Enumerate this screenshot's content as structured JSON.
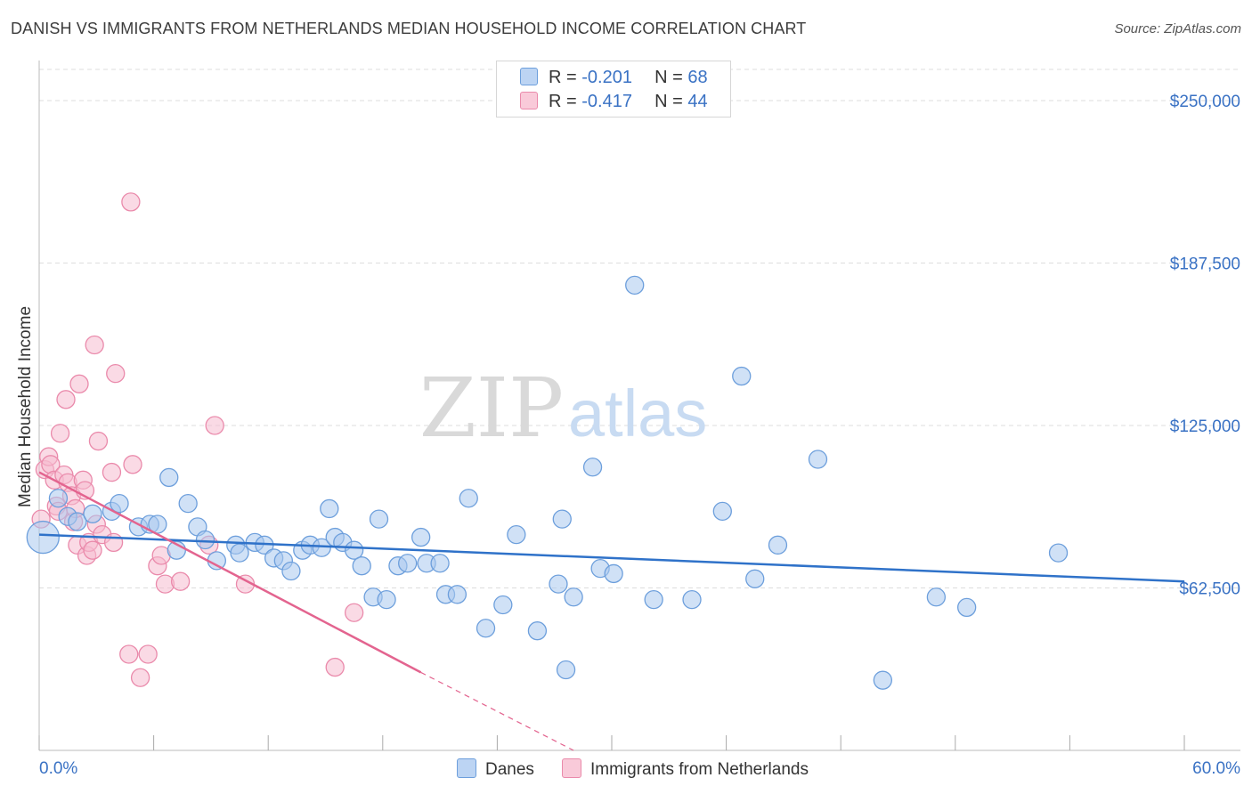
{
  "header": {
    "title": "DANISH VS IMMIGRANTS FROM NETHERLANDS MEDIAN HOUSEHOLD INCOME CORRELATION CHART",
    "source": "Source: ZipAtlas.com"
  },
  "watermark": {
    "zip": "ZIP",
    "atlas": "atlas"
  },
  "legend": {
    "rows": [
      {
        "r_label": "R =",
        "r_value": "-0.201",
        "n_label": "N =",
        "n_value": "68"
      },
      {
        "r_label": "R =",
        "r_value": "-0.417",
        "n_label": "N =",
        "n_value": "44"
      }
    ]
  },
  "colors": {
    "danes_fill": "#a9c8ef",
    "danes_stroke": "#6d9fdc",
    "danes_line": "#2f72c9",
    "neth_fill": "#f6bcd0",
    "neth_stroke": "#ea8aab",
    "neth_line": "#e3648f",
    "axis_text": "#3a72c4",
    "grid": "#dddddd"
  },
  "chart_data": {
    "type": "scatter",
    "title": "DANISH VS IMMIGRANTS FROM NETHERLANDS MEDIAN HOUSEHOLD INCOME CORRELATION CHART",
    "xlabel": "",
    "ylabel": "Median Household Income",
    "xlim": [
      0,
      60
    ],
    "ylim": [
      0,
      262000
    ],
    "x_tick_labels": [
      "0.0%",
      "60.0%"
    ],
    "y_ticks": [
      62500,
      125000,
      187500,
      250000
    ],
    "y_tick_labels": [
      "$62,500",
      "$125,000",
      "$187,500",
      "$250,000"
    ],
    "grid": true,
    "legend_position": "top-center",
    "series": [
      {
        "name": "Danes",
        "r": -0.201,
        "n": 68,
        "trend": {
          "x": [
            0,
            60
          ],
          "y": [
            83000,
            65000
          ]
        },
        "points": [
          [
            0.2,
            82000,
            18
          ],
          [
            1.0,
            97000,
            10
          ],
          [
            1.5,
            90000,
            10
          ],
          [
            2.0,
            88000,
            10
          ],
          [
            2.8,
            91000,
            10
          ],
          [
            3.8,
            92000,
            10
          ],
          [
            4.2,
            95000,
            10
          ],
          [
            5.2,
            86000,
            10
          ],
          [
            5.8,
            87000,
            10
          ],
          [
            6.2,
            87000,
            10
          ],
          [
            6.8,
            105000,
            10
          ],
          [
            7.2,
            77000,
            10
          ],
          [
            7.8,
            95000,
            10
          ],
          [
            8.3,
            86000,
            10
          ],
          [
            8.7,
            81000,
            10
          ],
          [
            9.3,
            73000,
            10
          ],
          [
            10.3,
            79000,
            10
          ],
          [
            10.5,
            76000,
            10
          ],
          [
            11.3,
            80000,
            10
          ],
          [
            11.8,
            79000,
            10
          ],
          [
            12.3,
            74000,
            10
          ],
          [
            12.8,
            73000,
            10
          ],
          [
            13.2,
            69000,
            10
          ],
          [
            13.8,
            77000,
            10
          ],
          [
            14.2,
            79000,
            10
          ],
          [
            14.8,
            78000,
            10
          ],
          [
            15.2,
            93000,
            10
          ],
          [
            15.5,
            82000,
            10
          ],
          [
            15.9,
            80000,
            10
          ],
          [
            16.5,
            77000,
            10
          ],
          [
            16.9,
            71000,
            10
          ],
          [
            17.5,
            59000,
            10
          ],
          [
            17.8,
            89000,
            10
          ],
          [
            18.2,
            58000,
            10
          ],
          [
            18.8,
            71000,
            10
          ],
          [
            19.3,
            72000,
            10
          ],
          [
            20.0,
            82000,
            10
          ],
          [
            20.3,
            72000,
            10
          ],
          [
            21.0,
            72000,
            10
          ],
          [
            21.3,
            60000,
            10
          ],
          [
            21.9,
            60000,
            10
          ],
          [
            22.5,
            97000,
            10
          ],
          [
            23.4,
            47000,
            10
          ],
          [
            24.3,
            56000,
            10
          ],
          [
            25.0,
            83000,
            10
          ],
          [
            26.1,
            46000,
            10
          ],
          [
            27.2,
            64000,
            10
          ],
          [
            27.6,
            31000,
            10
          ],
          [
            27.4,
            89000,
            10
          ],
          [
            28.0,
            59000,
            10
          ],
          [
            29.0,
            109000,
            10
          ],
          [
            29.4,
            70000,
            10
          ],
          [
            30.1,
            68000,
            10
          ],
          [
            32.2,
            58000,
            10
          ],
          [
            31.2,
            179000,
            10
          ],
          [
            34.2,
            58000,
            10
          ],
          [
            35.8,
            92000,
            10
          ],
          [
            36.8,
            144000,
            10
          ],
          [
            37.5,
            66000,
            10
          ],
          [
            38.7,
            79000,
            10
          ],
          [
            40.8,
            112000,
            10
          ],
          [
            44.2,
            27000,
            10
          ],
          [
            47.0,
            59000,
            10
          ],
          [
            48.6,
            55000,
            10
          ],
          [
            53.4,
            76000,
            10
          ]
        ]
      },
      {
        "name": "Immigrants from Netherlands",
        "r": -0.417,
        "n": 44,
        "trend": {
          "x": [
            0,
            20
          ],
          "y": [
            107000,
            30000
          ],
          "dash_to": [
            28,
            -2000
          ]
        },
        "points": [
          [
            0.1,
            89000,
            10
          ],
          [
            0.3,
            108000,
            10
          ],
          [
            0.5,
            113000,
            10
          ],
          [
            0.6,
            110000,
            10
          ],
          [
            0.8,
            104000,
            10
          ],
          [
            0.9,
            94000,
            10
          ],
          [
            1.0,
            92000,
            10
          ],
          [
            1.1,
            122000,
            10
          ],
          [
            1.3,
            106000,
            10
          ],
          [
            1.5,
            103000,
            10
          ],
          [
            1.4,
            135000,
            10
          ],
          [
            1.7,
            98000,
            10
          ],
          [
            1.8,
            88000,
            10
          ],
          [
            1.9,
            93000,
            10
          ],
          [
            2.0,
            79000,
            10
          ],
          [
            2.1,
            141000,
            10
          ],
          [
            2.3,
            104000,
            10
          ],
          [
            2.4,
            100000,
            10
          ],
          [
            2.5,
            75000,
            10
          ],
          [
            2.6,
            80000,
            10
          ],
          [
            2.8,
            77000,
            10
          ],
          [
            2.9,
            156000,
            10
          ],
          [
            3.0,
            87000,
            10
          ],
          [
            3.1,
            119000,
            10
          ],
          [
            3.3,
            83000,
            10
          ],
          [
            3.8,
            107000,
            10
          ],
          [
            3.9,
            80000,
            10
          ],
          [
            4.0,
            145000,
            10
          ],
          [
            4.7,
            37000,
            10
          ],
          [
            4.8,
            211000,
            10
          ],
          [
            4.9,
            110000,
            10
          ],
          [
            5.3,
            28000,
            10
          ],
          [
            5.7,
            37000,
            10
          ],
          [
            6.2,
            71000,
            10
          ],
          [
            6.4,
            75000,
            10
          ],
          [
            6.6,
            64000,
            10
          ],
          [
            7.4,
            65000,
            10
          ],
          [
            8.9,
            79000,
            10
          ],
          [
            9.2,
            125000,
            10
          ],
          [
            10.8,
            64000,
            10
          ],
          [
            15.5,
            32000,
            10
          ],
          [
            16.5,
            53000,
            10
          ]
        ]
      }
    ]
  }
}
